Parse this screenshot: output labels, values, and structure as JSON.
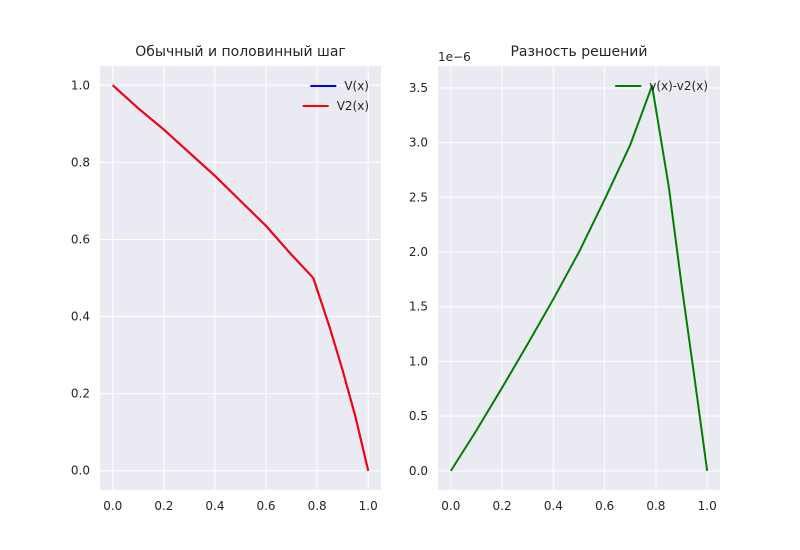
{
  "figure": {
    "background": "#ffffff",
    "axes_background": "#eaeaf2",
    "grid_color": "#ffffff"
  },
  "chart_data": [
    {
      "type": "line",
      "title": "Обычный и половинный шаг",
      "xlabel": "",
      "ylabel": "",
      "xlim": [
        -0.05,
        1.05
      ],
      "ylim": [
        -0.05,
        1.05
      ],
      "xticks": [
        "0.0",
        "0.2",
        "0.4",
        "0.6",
        "0.8",
        "1.0"
      ],
      "yticks": [
        "0.0",
        "0.2",
        "0.4",
        "0.6",
        "0.8",
        "1.0"
      ],
      "grid": true,
      "legend": "top-right",
      "series": [
        {
          "name": "V(x)",
          "color": "#0000ff",
          "x": [
            0.0,
            0.1,
            0.2,
            0.3,
            0.4,
            0.5,
            0.6,
            0.7,
            0.785,
            0.85,
            0.9,
            0.95,
            1.0
          ],
          "y": [
            1.0,
            0.94,
            0.885,
            0.825,
            0.765,
            0.7,
            0.635,
            0.56,
            0.5,
            0.37,
            0.26,
            0.14,
            0.0
          ]
        },
        {
          "name": "V2(x)",
          "color": "#ff0000",
          "x": [
            0.0,
            0.1,
            0.2,
            0.3,
            0.4,
            0.5,
            0.6,
            0.7,
            0.785,
            0.85,
            0.9,
            0.95,
            1.0
          ],
          "y": [
            1.0,
            0.94,
            0.885,
            0.825,
            0.765,
            0.7,
            0.635,
            0.56,
            0.5,
            0.37,
            0.26,
            0.14,
            0.0
          ]
        }
      ]
    },
    {
      "type": "line",
      "title": "Разность решений",
      "offset_label": "1e−6",
      "xlabel": "",
      "ylabel": "",
      "xlim": [
        -0.05,
        1.05
      ],
      "ylim": [
        -0.175,
        3.7
      ],
      "xticks": [
        "0.0",
        "0.2",
        "0.4",
        "0.6",
        "0.8",
        "1.0"
      ],
      "yticks": [
        "0.0",
        "0.5",
        "1.0",
        "1.5",
        "2.0",
        "2.5",
        "3.0",
        "3.5"
      ],
      "grid": true,
      "legend": "top-right",
      "series": [
        {
          "name": "v(x)-v2(x)",
          "color": "#008000",
          "x": [
            0.0,
            0.1,
            0.2,
            0.3,
            0.4,
            0.5,
            0.6,
            0.7,
            0.785,
            0.85,
            0.9,
            0.95,
            1.0
          ],
          "y": [
            0.0,
            0.37,
            0.76,
            1.16,
            1.57,
            2.0,
            2.48,
            2.98,
            3.52,
            2.6,
            1.7,
            0.86,
            0.0
          ]
        }
      ]
    }
  ]
}
